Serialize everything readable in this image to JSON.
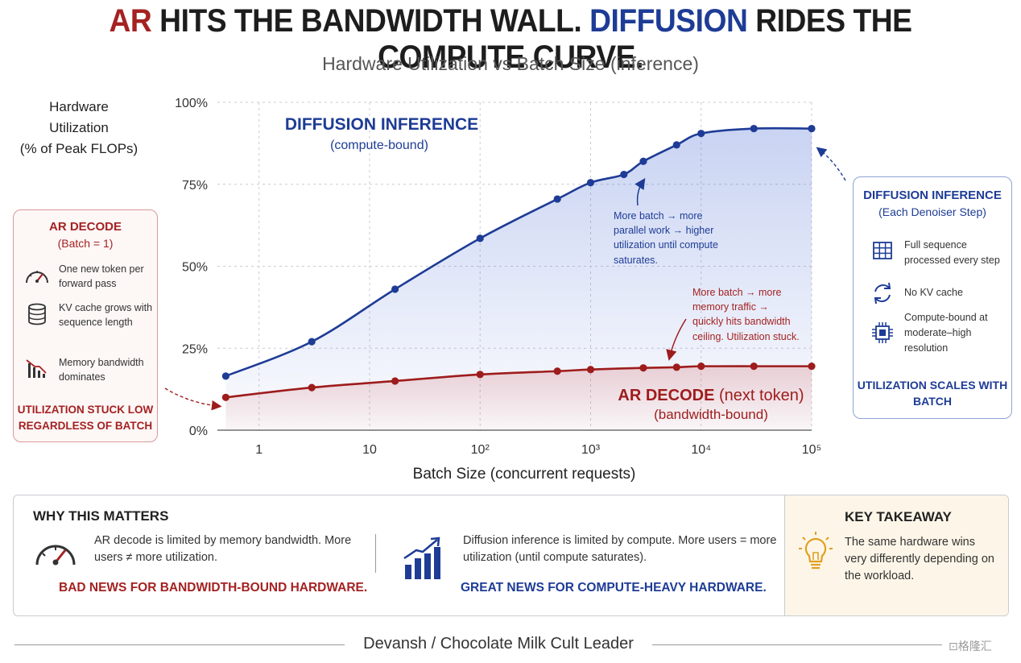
{
  "header": {
    "headline_part1": "AR",
    "headline_part2": " HITS THE BANDWIDTH WALL. ",
    "headline_part3": "DIFFUSION",
    "headline_part4": " RIDES THE COMPUTE CURVE.",
    "subtitle": "Hardware Utilization vs Batch Size (inference)"
  },
  "colors": {
    "diffusion_blue": "#1e3c96",
    "ar_red": "#9e1c1c",
    "accent_red_text": "#a42222"
  },
  "chart_data": {
    "type": "line",
    "title": "Hardware Utilization vs Batch Size (inference)",
    "ylabel_lines": [
      "Hardware",
      "Utilization",
      "(% of Peak FLOPs)"
    ],
    "xlabel": "Batch Size (concurrent requests)",
    "x_scale": "log",
    "x_ticks": [
      {
        "value": 1,
        "label": "1"
      },
      {
        "value": 10,
        "label": "10"
      },
      {
        "value": 100,
        "label": "10²"
      },
      {
        "value": 1000,
        "label": "10³"
      },
      {
        "value": 10000,
        "label": "10⁴"
      },
      {
        "value": 100000,
        "label": "10⁵"
      }
    ],
    "y_ticks": [
      {
        "value": 0,
        "label": "0%"
      },
      {
        "value": 25,
        "label": "25%"
      },
      {
        "value": 50,
        "label": "50%"
      },
      {
        "value": 75,
        "label": "75%"
      },
      {
        "value": 100,
        "label": "100%"
      }
    ],
    "xlim": [
      0.42,
      100000
    ],
    "ylim": [
      0,
      100
    ],
    "grid": true,
    "series": [
      {
        "name": "DIFFUSION INFERENCE",
        "name_sub": "(compute-bound)",
        "color": "#1e3c96",
        "x": [
          0.5,
          3,
          17,
          100,
          500,
          1000,
          2000,
          3000,
          6000,
          10000,
          30000,
          100000
        ],
        "y": [
          16.5,
          27,
          43,
          58.5,
          70.5,
          75.5,
          78,
          82,
          87,
          90.5,
          92,
          92
        ]
      },
      {
        "name": "AR DECODE",
        "name_suffix": " (next token)",
        "name_sub": "(bandwidth-bound)",
        "color": "#9e1c1c",
        "x": [
          0.5,
          3,
          17,
          100,
          500,
          1000,
          3000,
          6000,
          10000,
          30000,
          100000
        ],
        "y": [
          10,
          13,
          15,
          17,
          18,
          18.5,
          19,
          19.2,
          19.5,
          19.5,
          19.5
        ]
      }
    ],
    "annotations": [
      {
        "color": "#1e3c96",
        "lines": [
          "More batch → more",
          "parallel work → higher",
          "utilization until compute",
          "saturates."
        ]
      },
      {
        "color": "#a42222",
        "lines": [
          "More batch → more",
          "memory traffic →",
          "quickly hits bandwidth",
          "ceiling. Utilization stuck."
        ]
      }
    ]
  },
  "ar_box": {
    "title": "AR DECODE",
    "subtitle": "(Batch = 1)",
    "items": [
      {
        "icon": "gauge-icon",
        "text": "One new token per forward pass"
      },
      {
        "icon": "database-icon",
        "text": "KV cache grows with sequence length"
      },
      {
        "icon": "bar-chart-down-icon",
        "text": "Memory bandwidth dominates"
      }
    ],
    "footer": "UTILIZATION STUCK LOW REGARDLESS OF BATCH"
  },
  "diffusion_box": {
    "title": "DIFFUSION INFERENCE",
    "subtitle": "(Each Denoiser Step)",
    "items": [
      {
        "icon": "grid-icon",
        "text": "Full sequence processed every step"
      },
      {
        "icon": "refresh-icon",
        "text": "No KV cache"
      },
      {
        "icon": "chip-icon",
        "text": "Compute-bound at moderate–high resolution"
      }
    ],
    "footer": "UTILIZATION SCALES WITH BATCH"
  },
  "why": {
    "title": "WHY THIS MATTERS",
    "left_text": "AR decode is limited by memory bandwidth. More users ≠ more utilization.",
    "left_cta": "BAD NEWS FOR BANDWIDTH-BOUND HARDWARE.",
    "right_text": "Diffusion inference is limited by compute. More users = more utilization (until compute saturates).",
    "right_cta": "GREAT NEWS FOR COMPUTE-HEAVY HARDWARE."
  },
  "takeaway": {
    "title": "KEY TAKEAWAY",
    "text": "The same hardware wins very differently depending on the workload."
  },
  "footer": {
    "credit": "Devansh / Chocolate Milk Cult Leader",
    "watermark": "⊡格隆汇"
  }
}
